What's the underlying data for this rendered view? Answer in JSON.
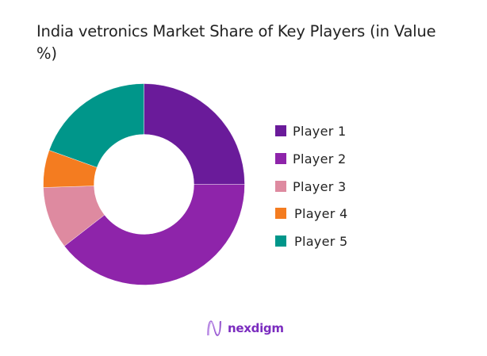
{
  "chart_data": {
    "type": "pie",
    "variant": "donut",
    "title": "India vetronics Market Share of Key Players (in Value %)",
    "title_lines": [
      "India vetronics Market Share of Key Players (in Value",
      "%)"
    ],
    "categories": [
      "Player 1",
      "Player 2",
      "Player 3",
      "Player 4",
      "Player 5"
    ],
    "values": [
      25,
      39.5,
      10,
      6,
      19.5
    ],
    "unit": "%",
    "colors": [
      "#6a1b9a",
      "#8e24aa",
      "#de8aa0",
      "#f47c20",
      "#00968a"
    ],
    "start_angle_deg": 0,
    "direction": "clockwise",
    "data_labels": false,
    "legend_position": "right",
    "xlabel": "",
    "ylabel": ""
  },
  "legend": {
    "items": [
      {
        "label": "Player 1",
        "color": "#6a1b9a"
      },
      {
        "label": "Player 2",
        "color": "#8e24aa"
      },
      {
        "label": "Player 3",
        "color": "#de8aa0"
      },
      {
        "label": "Player 4",
        "color": "#f47c20"
      },
      {
        "label": "Player 5",
        "color": "#00968a"
      }
    ]
  },
  "branding": {
    "logo_text": "nexdigm",
    "logo_color": "#7b2cbf"
  }
}
